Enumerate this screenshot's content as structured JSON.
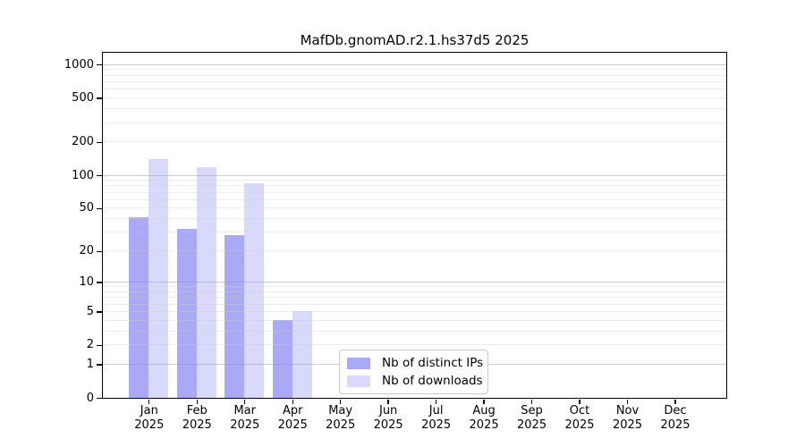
{
  "chart_data": {
    "type": "bar",
    "title": "MafDb.gnomAD.r2.1.hs37d5 2025",
    "year_label": "2025",
    "categories": [
      "Jan",
      "Feb",
      "Mar",
      "Apr",
      "May",
      "Jun",
      "Jul",
      "Aug",
      "Sep",
      "Oct",
      "Nov",
      "Dec"
    ],
    "series": [
      {
        "name": "Nb of distinct IPs",
        "color": "#a9a9f5",
        "values": [
          41,
          32,
          28,
          4,
          0,
          0,
          0,
          0,
          0,
          0,
          0,
          0
        ]
      },
      {
        "name": "Nb of downloads",
        "color": "#d9d9fb",
        "values": [
          140,
          118,
          85,
          5,
          0,
          0,
          0,
          0,
          0,
          0,
          0,
          0
        ]
      }
    ],
    "y_axis": {
      "scale": "log10(1+v)",
      "ticks": [
        0,
        1,
        2,
        5,
        10,
        20,
        50,
        100,
        200,
        500,
        1000
      ],
      "major_gridlines": [
        1,
        10,
        100,
        1000
      ],
      "minor_gridlines": [
        2,
        3,
        4,
        5,
        6,
        7,
        8,
        9,
        20,
        30,
        40,
        50,
        60,
        70,
        80,
        90,
        200,
        300,
        400,
        500,
        600,
        700,
        800,
        900
      ],
      "ylim": [
        0,
        1270
      ]
    },
    "x_axis": {
      "tick_label_format": "month over year"
    },
    "legend": {
      "position": "bottom-center-inside"
    },
    "grid": true,
    "colors": {
      "bar_distinct_ips": "#a9a9f5",
      "bar_downloads": "#d9d9fb",
      "spine": "#000000",
      "major_grid": "#c6c6c6",
      "minor_grid": "#ececec",
      "text": "#000000",
      "background": "#ffffff"
    }
  }
}
